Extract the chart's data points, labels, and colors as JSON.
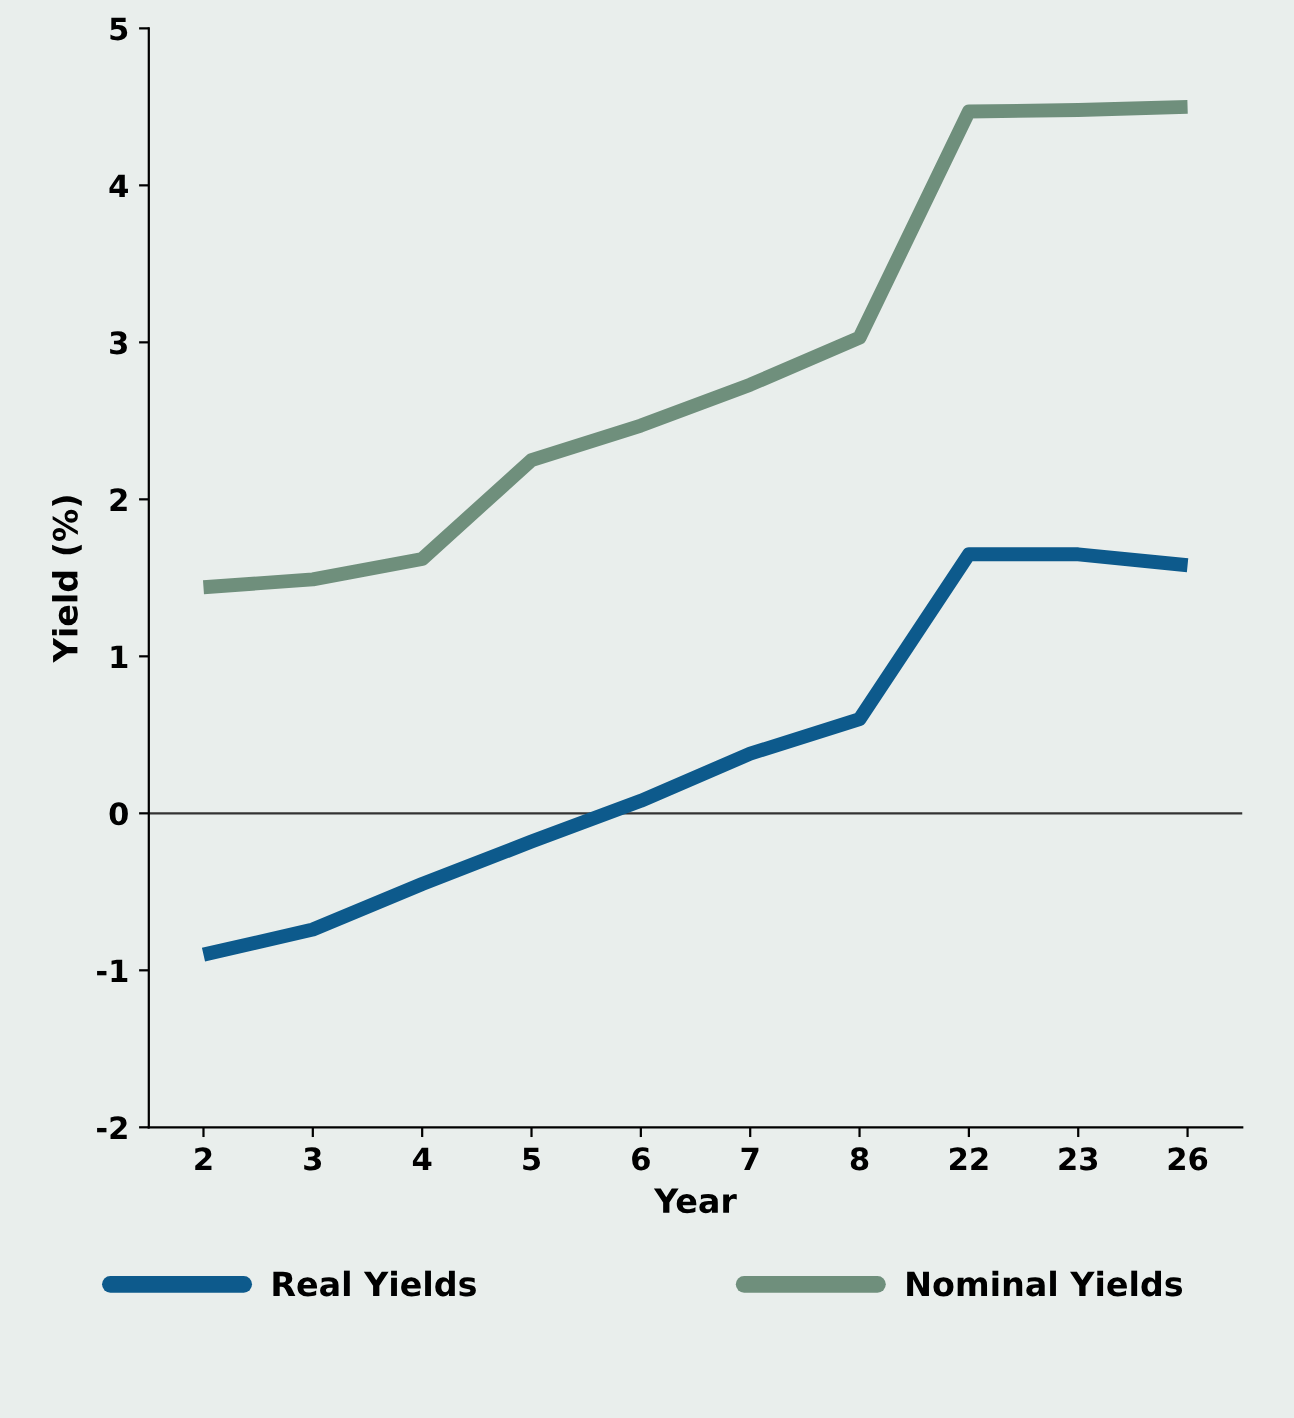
{
  "chart_data": {
    "type": "line",
    "ylabel": "Yield (%)",
    "xlabel": "Year",
    "categories": [
      "2",
      "3",
      "4",
      "5",
      "6",
      "7",
      "8",
      "22",
      "23",
      "26"
    ],
    "series": [
      {
        "name": "Real Yields",
        "color": "#0d5a8c",
        "values": [
          -0.9,
          -0.74,
          -0.45,
          -0.18,
          0.08,
          0.38,
          0.6,
          1.65,
          1.65,
          1.58
        ]
      },
      {
        "name": "Nominal Yields",
        "color": "#6f8f7c",
        "values": [
          1.44,
          1.49,
          1.62,
          2.25,
          2.47,
          2.73,
          3.03,
          4.47,
          4.48,
          4.5
        ]
      }
    ],
    "ylim": [
      -2,
      5
    ],
    "yticks": [
      -2,
      -1,
      0,
      1,
      2,
      3,
      4,
      5
    ],
    "ref_lines": [
      {
        "axis": "y",
        "value": 0,
        "color": "#333333"
      }
    ],
    "grid": false,
    "legend": "bottom",
    "marker": "none",
    "line_style": "solid"
  }
}
